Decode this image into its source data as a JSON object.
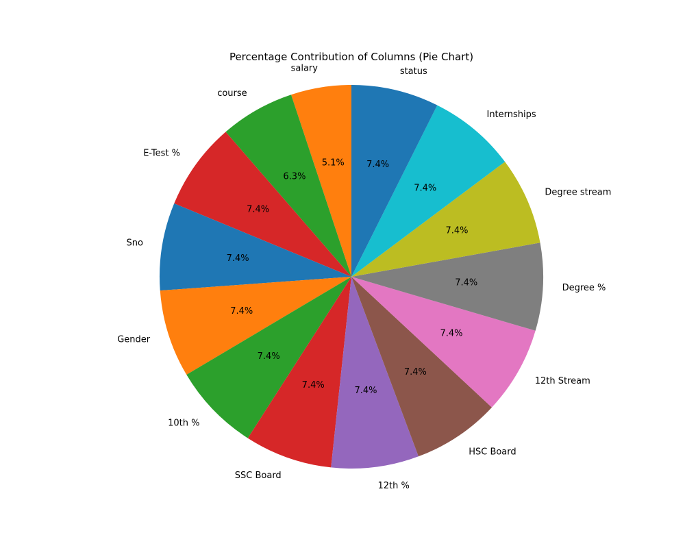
{
  "chart_data": {
    "type": "pie",
    "title": "Percentage Contribution of Columns (Pie Chart)",
    "start_angle_deg": 90,
    "direction": "counterclockwise",
    "slices": [
      {
        "label": "salary",
        "value": 5.1,
        "pct_label": "5.1%",
        "color": "#ff7f0e"
      },
      {
        "label": "course",
        "value": 6.3,
        "pct_label": "6.3%",
        "color": "#2ca02c"
      },
      {
        "label": "E-Test %",
        "value": 7.4,
        "pct_label": "7.4%",
        "color": "#d62728"
      },
      {
        "label": "Sno",
        "value": 7.4,
        "pct_label": "7.4%",
        "color": "#1f77b4"
      },
      {
        "label": "Gender",
        "value": 7.4,
        "pct_label": "7.4%",
        "color": "#ff7f0e"
      },
      {
        "label": "10th %",
        "value": 7.4,
        "pct_label": "7.4%",
        "color": "#2ca02c"
      },
      {
        "label": "SSC Board",
        "value": 7.4,
        "pct_label": "7.4%",
        "color": "#d62728"
      },
      {
        "label": "12th %",
        "value": 7.4,
        "pct_label": "7.4%",
        "color": "#9467bd"
      },
      {
        "label": "HSC Board",
        "value": 7.4,
        "pct_label": "7.4%",
        "color": "#8c564b"
      },
      {
        "label": "12th Stream",
        "value": 7.4,
        "pct_label": "7.4%",
        "color": "#e377c2"
      },
      {
        "label": "Degree %",
        "value": 7.4,
        "pct_label": "7.4%",
        "color": "#7f7f7f"
      },
      {
        "label": "Degree stream",
        "value": 7.4,
        "pct_label": "7.4%",
        "color": "#bcbd22"
      },
      {
        "label": "Internships",
        "value": 7.4,
        "pct_label": "7.4%",
        "color": "#17becf"
      },
      {
        "label": "status",
        "value": 7.4,
        "pct_label": "7.4%",
        "color": "#1f77b4"
      }
    ]
  }
}
